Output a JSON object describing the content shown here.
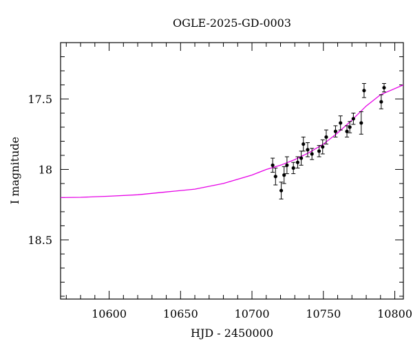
{
  "chart_data": {
    "type": "scatter",
    "title": "OGLE-2025-GD-0003",
    "xlabel": "HJD - 2450000",
    "ylabel": "I magnitude",
    "xlim": [
      10566,
      10806
    ],
    "ylim": [
      17.1,
      18.92
    ],
    "y_inverted": true,
    "x_ticks": [
      10600,
      10650,
      10700,
      10750,
      10800
    ],
    "x_tick_labels": [
      "10600",
      "10650",
      "10700",
      "10750",
      "10800"
    ],
    "y_ticks": [
      17.5,
      18,
      18.5
    ],
    "y_tick_labels": [
      "17.5",
      "18",
      "18.5"
    ],
    "grid": false,
    "series": [
      {
        "kind": "points",
        "color": "#000000",
        "points": [
          {
            "x": 10714.5,
            "y": 17.97,
            "err": 0.05
          },
          {
            "x": 10716.5,
            "y": 18.05,
            "err": 0.06
          },
          {
            "x": 10720.5,
            "y": 18.15,
            "err": 0.06
          },
          {
            "x": 10722.5,
            "y": 18.04,
            "err": 0.06
          },
          {
            "x": 10724.5,
            "y": 17.97,
            "err": 0.06
          },
          {
            "x": 10729.0,
            "y": 17.99,
            "err": 0.04
          },
          {
            "x": 10732.0,
            "y": 17.95,
            "err": 0.04
          },
          {
            "x": 10734.5,
            "y": 17.92,
            "err": 0.05
          },
          {
            "x": 10736.0,
            "y": 17.82,
            "err": 0.05
          },
          {
            "x": 10739.0,
            "y": 17.86,
            "err": 0.05
          },
          {
            "x": 10742.0,
            "y": 17.89,
            "err": 0.04
          },
          {
            "x": 10747.0,
            "y": 17.87,
            "err": 0.04
          },
          {
            "x": 10749.5,
            "y": 17.84,
            "err": 0.05
          },
          {
            "x": 10752.0,
            "y": 17.77,
            "err": 0.05
          },
          {
            "x": 10758.5,
            "y": 17.73,
            "err": 0.04
          },
          {
            "x": 10762.0,
            "y": 17.67,
            "err": 0.05
          },
          {
            "x": 10766.5,
            "y": 17.73,
            "err": 0.04
          },
          {
            "x": 10768.5,
            "y": 17.7,
            "err": 0.04
          },
          {
            "x": 10771.0,
            "y": 17.64,
            "err": 0.04
          },
          {
            "x": 10776.5,
            "y": 17.67,
            "err": 0.08
          },
          {
            "x": 10778.5,
            "y": 17.44,
            "err": 0.05
          },
          {
            "x": 10790.5,
            "y": 17.52,
            "err": 0.05
          },
          {
            "x": 10792.5,
            "y": 17.42,
            "err": 0.03
          }
        ]
      },
      {
        "kind": "line",
        "color": "#e600e6",
        "points": [
          {
            "x": 10566,
            "y": 18.2
          },
          {
            "x": 10580,
            "y": 18.198
          },
          {
            "x": 10600,
            "y": 18.19
          },
          {
            "x": 10620,
            "y": 18.18
          },
          {
            "x": 10640,
            "y": 18.16
          },
          {
            "x": 10660,
            "y": 18.14
          },
          {
            "x": 10680,
            "y": 18.1
          },
          {
            "x": 10700,
            "y": 18.04
          },
          {
            "x": 10710,
            "y": 18.0
          },
          {
            "x": 10720,
            "y": 17.97
          },
          {
            "x": 10730,
            "y": 17.93
          },
          {
            "x": 10740,
            "y": 17.88
          },
          {
            "x": 10750,
            "y": 17.82
          },
          {
            "x": 10760,
            "y": 17.74
          },
          {
            "x": 10770,
            "y": 17.65
          },
          {
            "x": 10780,
            "y": 17.55
          },
          {
            "x": 10790,
            "y": 17.47
          },
          {
            "x": 10806,
            "y": 17.4
          }
        ]
      }
    ]
  }
}
